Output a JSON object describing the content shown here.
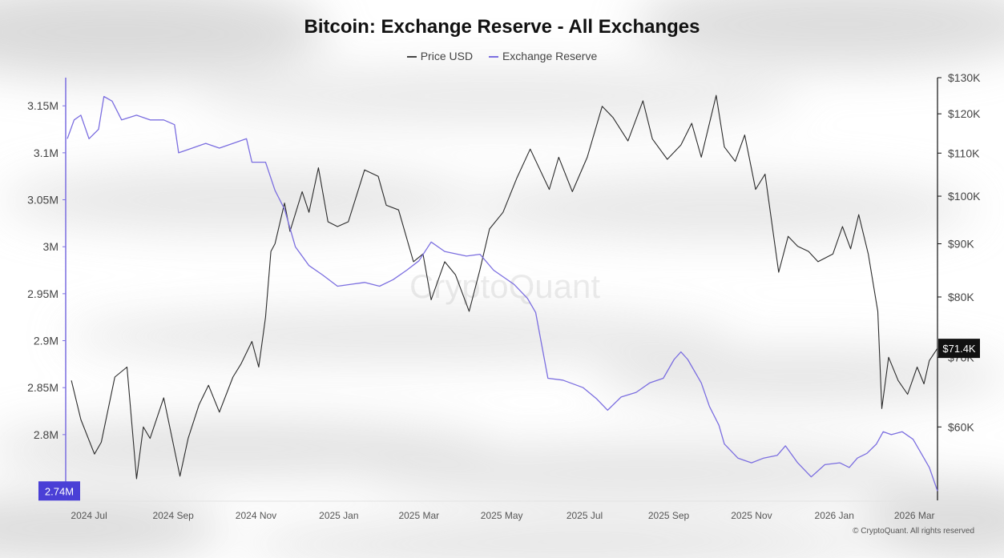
{
  "chart_data": {
    "type": "line",
    "title": "Bitcoin: Exchange Reserve - All Exchanges",
    "legend_position": "top-center",
    "grid": false,
    "watermark": "CryptoQuant",
    "copyright": "© CryptoQuant. All rights reserved",
    "x_tick_labels": [
      "2024 Jul",
      "2024 Sep",
      "2024 Nov",
      "2025 Jan",
      "2025 Mar",
      "2025 May",
      "2025 Jul",
      "2025 Sep",
      "2025 Nov",
      "2026 Jan",
      "2026 Mar"
    ],
    "xlim": [
      "2024-06-15",
      "2026-03-18"
    ],
    "left_axis": {
      "tick_labels": [
        "3.15M",
        "3.1M",
        "3.05M",
        "3M",
        "2.95M",
        "2.9M",
        "2.85M",
        "2.8M"
      ],
      "ticks": [
        3150000,
        3100000,
        3050000,
        3000000,
        2950000,
        2900000,
        2850000,
        2800000
      ],
      "ylim": [
        2730000,
        3180000
      ],
      "current_value_label": "2.74M"
    },
    "right_axis": {
      "scale": "log",
      "tick_labels": [
        "$130K",
        "$120K",
        "$110K",
        "$100K",
        "$90K",
        "$80K",
        "$70K",
        "$60K"
      ],
      "ticks": [
        130000,
        120000,
        110000,
        100000,
        90000,
        80000,
        70000,
        60000
      ],
      "ylim": [
        51000,
        130000
      ],
      "current_value_label": "$71.4K"
    },
    "series": [
      {
        "name": "Price USD",
        "axis": "right",
        "color": "#2b2b2b",
        "points": [
          [
            "2024-06-18",
            66500
          ],
          [
            "2024-06-25",
            61000
          ],
          [
            "2024-07-05",
            56500
          ],
          [
            "2024-07-10",
            58000
          ],
          [
            "2024-07-20",
            67000
          ],
          [
            "2024-07-29",
            68500
          ],
          [
            "2024-08-05",
            53500
          ],
          [
            "2024-08-10",
            60000
          ],
          [
            "2024-08-15",
            58500
          ],
          [
            "2024-08-25",
            64000
          ],
          [
            "2024-09-06",
            53800
          ],
          [
            "2024-09-12",
            58500
          ],
          [
            "2024-09-20",
            63000
          ],
          [
            "2024-09-27",
            65800
          ],
          [
            "2024-10-05",
            62000
          ],
          [
            "2024-10-15",
            67000
          ],
          [
            "2024-10-21",
            69000
          ],
          [
            "2024-10-29",
            72500
          ],
          [
            "2024-11-03",
            68500
          ],
          [
            "2024-11-08",
            76500
          ],
          [
            "2024-11-12",
            88500
          ],
          [
            "2024-11-15",
            90000
          ],
          [
            "2024-11-22",
            98500
          ],
          [
            "2024-11-26",
            92500
          ],
          [
            "2024-12-05",
            101000
          ],
          [
            "2024-12-10",
            96500
          ],
          [
            "2024-12-17",
            106500
          ],
          [
            "2024-12-24",
            94500
          ],
          [
            "2024-12-31",
            93500
          ],
          [
            "2025-01-08",
            94500
          ],
          [
            "2025-01-20",
            106000
          ],
          [
            "2025-01-30",
            104500
          ],
          [
            "2025-02-05",
            98000
          ],
          [
            "2025-02-14",
            97000
          ],
          [
            "2025-02-25",
            86500
          ],
          [
            "2025-03-04",
            88000
          ],
          [
            "2025-03-10",
            79500
          ],
          [
            "2025-03-20",
            86500
          ],
          [
            "2025-03-28",
            84000
          ],
          [
            "2025-04-07",
            77500
          ],
          [
            "2025-04-15",
            85000
          ],
          [
            "2025-04-22",
            93000
          ],
          [
            "2025-05-02",
            96500
          ],
          [
            "2025-05-12",
            104000
          ],
          [
            "2025-05-22",
            111000
          ],
          [
            "2025-06-05",
            101500
          ],
          [
            "2025-06-12",
            109000
          ],
          [
            "2025-06-22",
            101000
          ],
          [
            "2025-07-03",
            109000
          ],
          [
            "2025-07-14",
            122000
          ],
          [
            "2025-07-22",
            119000
          ],
          [
            "2025-08-02",
            113000
          ],
          [
            "2025-08-13",
            123500
          ],
          [
            "2025-08-20",
            113500
          ],
          [
            "2025-08-31",
            108500
          ],
          [
            "2025-09-10",
            112000
          ],
          [
            "2025-09-18",
            117500
          ],
          [
            "2025-09-25",
            109000
          ],
          [
            "2025-10-06",
            125000
          ],
          [
            "2025-10-12",
            111500
          ],
          [
            "2025-10-20",
            108000
          ],
          [
            "2025-10-27",
            114500
          ],
          [
            "2025-11-04",
            101500
          ],
          [
            "2025-11-11",
            105000
          ],
          [
            "2025-11-21",
            84500
          ],
          [
            "2025-11-28",
            91500
          ],
          [
            "2025-12-05",
            89500
          ],
          [
            "2025-12-13",
            88500
          ],
          [
            "2025-12-20",
            86500
          ],
          [
            "2025-12-31",
            88000
          ],
          [
            "2026-01-07",
            93500
          ],
          [
            "2026-01-13",
            89000
          ],
          [
            "2026-01-19",
            96000
          ],
          [
            "2026-01-26",
            88000
          ],
          [
            "2026-02-02",
            77500
          ],
          [
            "2026-02-05",
            62500
          ],
          [
            "2026-02-10",
            70000
          ],
          [
            "2026-02-17",
            66500
          ],
          [
            "2026-02-24",
            64500
          ],
          [
            "2026-03-03",
            68500
          ],
          [
            "2026-03-08",
            66000
          ],
          [
            "2026-03-12",
            69500
          ],
          [
            "2026-03-18",
            71400
          ]
        ]
      },
      {
        "name": "Exchange Reserve",
        "axis": "left",
        "color": "#7b6ee0",
        "points": [
          [
            "2024-06-15",
            3115000
          ],
          [
            "2024-06-20",
            3135000
          ],
          [
            "2024-06-25",
            3140000
          ],
          [
            "2024-07-01",
            3115000
          ],
          [
            "2024-07-08",
            3125000
          ],
          [
            "2024-07-12",
            3160000
          ],
          [
            "2024-07-18",
            3155000
          ],
          [
            "2024-07-25",
            3135000
          ],
          [
            "2024-08-05",
            3140000
          ],
          [
            "2024-08-15",
            3135000
          ],
          [
            "2024-08-25",
            3135000
          ],
          [
            "2024-09-02",
            3130000
          ],
          [
            "2024-09-05",
            3100000
          ],
          [
            "2024-09-15",
            3105000
          ],
          [
            "2024-09-25",
            3110000
          ],
          [
            "2024-10-05",
            3105000
          ],
          [
            "2024-10-15",
            3110000
          ],
          [
            "2024-10-25",
            3115000
          ],
          [
            "2024-10-29",
            3090000
          ],
          [
            "2024-11-08",
            3090000
          ],
          [
            "2024-11-15",
            3060000
          ],
          [
            "2024-11-22",
            3040000
          ],
          [
            "2024-11-30",
            3000000
          ],
          [
            "2024-12-10",
            2980000
          ],
          [
            "2024-12-20",
            2970000
          ],
          [
            "2024-12-31",
            2958000
          ],
          [
            "2025-01-10",
            2960000
          ],
          [
            "2025-01-20",
            2962000
          ],
          [
            "2025-01-31",
            2958000
          ],
          [
            "2025-02-10",
            2965000
          ],
          [
            "2025-02-20",
            2975000
          ],
          [
            "2025-03-01",
            2985000
          ],
          [
            "2025-03-10",
            3005000
          ],
          [
            "2025-03-20",
            2995000
          ],
          [
            "2025-04-05",
            2990000
          ],
          [
            "2025-04-15",
            2992000
          ],
          [
            "2025-04-25",
            2975000
          ],
          [
            "2025-05-10",
            2960000
          ],
          [
            "2025-05-20",
            2945000
          ],
          [
            "2025-05-26",
            2930000
          ],
          [
            "2025-06-04",
            2860000
          ],
          [
            "2025-06-15",
            2858000
          ],
          [
            "2025-06-30",
            2850000
          ],
          [
            "2025-07-10",
            2838000
          ],
          [
            "2025-07-18",
            2826000
          ],
          [
            "2025-07-28",
            2840000
          ],
          [
            "2025-08-08",
            2845000
          ],
          [
            "2025-08-18",
            2855000
          ],
          [
            "2025-08-28",
            2860000
          ],
          [
            "2025-09-05",
            2880000
          ],
          [
            "2025-09-10",
            2888000
          ],
          [
            "2025-09-15",
            2880000
          ],
          [
            "2025-09-25",
            2855000
          ],
          [
            "2025-10-01",
            2830000
          ],
          [
            "2025-10-08",
            2810000
          ],
          [
            "2025-10-12",
            2790000
          ],
          [
            "2025-10-22",
            2775000
          ],
          [
            "2025-11-01",
            2770000
          ],
          [
            "2025-11-10",
            2775000
          ],
          [
            "2025-11-20",
            2778000
          ],
          [
            "2025-11-26",
            2788000
          ],
          [
            "2025-12-05",
            2770000
          ],
          [
            "2025-12-15",
            2755000
          ],
          [
            "2025-12-25",
            2768000
          ],
          [
            "2026-01-05",
            2770000
          ],
          [
            "2026-01-12",
            2765000
          ],
          [
            "2026-01-18",
            2775000
          ],
          [
            "2026-01-25",
            2780000
          ],
          [
            "2026-02-01",
            2790000
          ],
          [
            "2026-02-06",
            2803000
          ],
          [
            "2026-02-12",
            2800000
          ],
          [
            "2026-02-20",
            2803000
          ],
          [
            "2026-02-28",
            2795000
          ],
          [
            "2026-03-06",
            2780000
          ],
          [
            "2026-03-12",
            2765000
          ],
          [
            "2026-03-18",
            2740000
          ]
        ]
      }
    ]
  }
}
